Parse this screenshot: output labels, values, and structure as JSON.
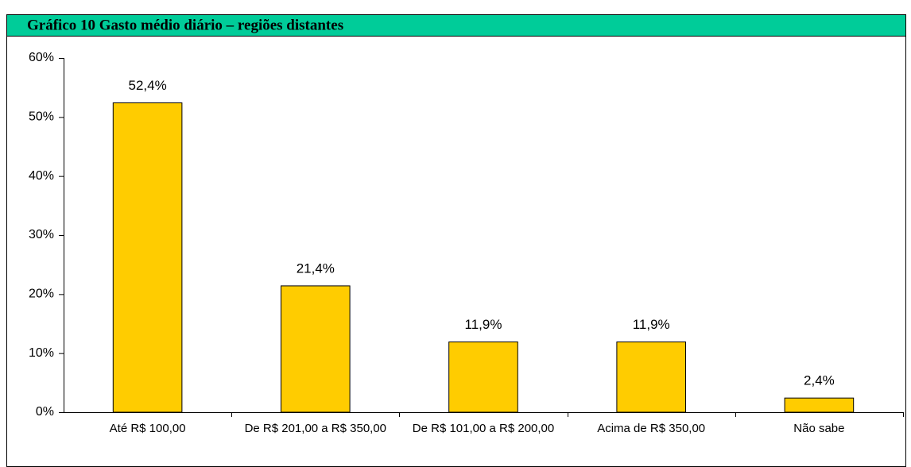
{
  "chart_data": {
    "type": "bar",
    "title": "Gráfico 10 Gasto médio diário – regiões distantes",
    "categories": [
      "Até R$ 100,00",
      "De R$ 201,00 a R$ 350,00",
      "De R$ 101,00 a R$ 200,00",
      "Acima de R$ 350,00",
      "Não sabe"
    ],
    "values": [
      52.4,
      21.4,
      11.9,
      11.9,
      2.4
    ],
    "value_labels": [
      "52,4%",
      "21,4%",
      "11,9%",
      "11,9%",
      "2,4%"
    ],
    "color": "#ffcc00",
    "ylim": [
      0,
      60
    ],
    "yticks": [
      {
        "value": 0,
        "label": "0%"
      },
      {
        "value": 10,
        "label": "10%"
      },
      {
        "value": 20,
        "label": "20%"
      },
      {
        "value": 30,
        "label": "30%"
      },
      {
        "value": 40,
        "label": "40%"
      },
      {
        "value": 50,
        "label": "50%"
      },
      {
        "value": 60,
        "label": "60%"
      }
    ],
    "grid": false
  }
}
